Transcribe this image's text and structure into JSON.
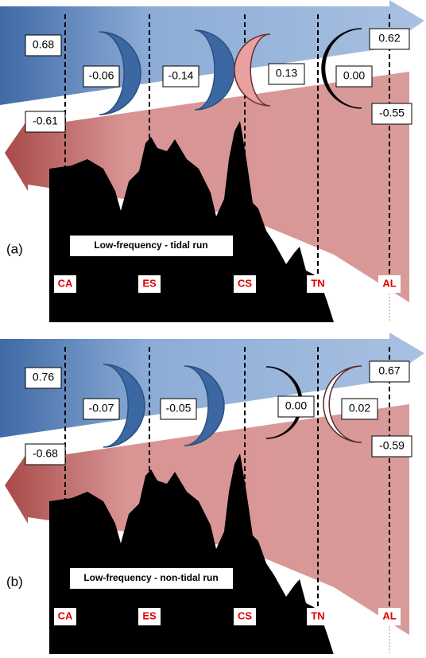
{
  "panels": [
    {
      "label": "(a)",
      "title": "Low-frequency - tidal run",
      "left_top": "0.68",
      "left_bottom": "-0.61",
      "right_top": "0.62",
      "right_bottom": "-0.55",
      "exchanges": [
        "-0.06",
        "-0.14",
        "0.13",
        "0.00"
      ],
      "stations": [
        "CA",
        "ES",
        "CS",
        "TN",
        "AL"
      ]
    },
    {
      "label": "(b)",
      "title": "Low-frequency - non-tidal run",
      "left_top": "0.76",
      "left_bottom": "-0.68",
      "right_top": "0.67",
      "right_bottom": "-0.59",
      "exchanges": [
        "-0.07",
        "-0.05",
        "0.00",
        "0.02"
      ],
      "stations": [
        "CA",
        "ES",
        "CS",
        "TN",
        "AL"
      ]
    }
  ]
}
